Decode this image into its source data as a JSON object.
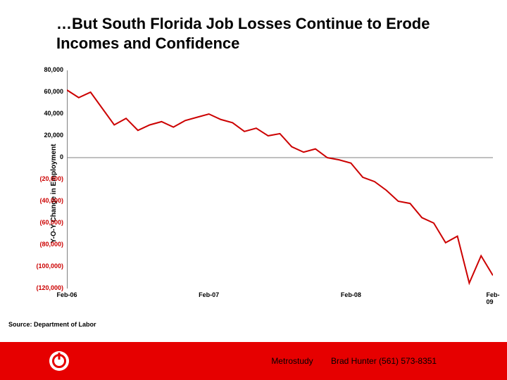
{
  "title": "…But South Florida Job Losses Continue to Erode Incomes and Confidence",
  "chart": {
    "type": "line",
    "ylabel": "Y-O-Y Change in Employment",
    "ylim": [
      -120000,
      80000
    ],
    "yticks": [
      {
        "v": 80000,
        "label": "80,000",
        "neg": false
      },
      {
        "v": 60000,
        "label": "60,000",
        "neg": false
      },
      {
        "v": 40000,
        "label": "40,000",
        "neg": false
      },
      {
        "v": 20000,
        "label": "20,000",
        "neg": false
      },
      {
        "v": 0,
        "label": "0",
        "neg": false
      },
      {
        "v": -20000,
        "label": "(20,000)",
        "neg": true
      },
      {
        "v": -40000,
        "label": "(40,000)",
        "neg": true
      },
      {
        "v": -60000,
        "label": "(60,000)",
        "neg": true
      },
      {
        "v": -80000,
        "label": "(80,000)",
        "neg": true
      },
      {
        "v": -100000,
        "label": "(100,000)",
        "neg": true
      },
      {
        "v": -120000,
        "label": "(120,000)",
        "neg": true
      }
    ],
    "xticks": [
      {
        "i": 0,
        "label": "Feb-06"
      },
      {
        "i": 12,
        "label": "Feb-07"
      },
      {
        "i": 24,
        "label": "Feb-08"
      },
      {
        "i": 36,
        "label": "Feb-09"
      }
    ],
    "xcount": 37,
    "values": [
      62000,
      55000,
      60000,
      45000,
      30000,
      36000,
      25000,
      30000,
      33000,
      28000,
      34000,
      37000,
      40000,
      35000,
      32000,
      24000,
      27000,
      20000,
      22000,
      10000,
      5000,
      8000,
      0,
      -2000,
      -5000,
      -18000,
      -22000,
      -30000,
      -40000,
      -42000,
      -55000,
      -60000,
      -78000,
      -72000,
      -115000,
      -90000,
      -108000
    ],
    "line_color": "#cc0000",
    "line_width": 2,
    "grid_color": "#808080",
    "background_color": "#ffffff",
    "source": "Source: Department of Labor",
    "tick_fontsize": 9,
    "label_fontsize": 10
  },
  "footer": {
    "bar_color": "#e60000",
    "company": "Metrostudy",
    "contact": "Brad Hunter (561) 573-8351"
  }
}
